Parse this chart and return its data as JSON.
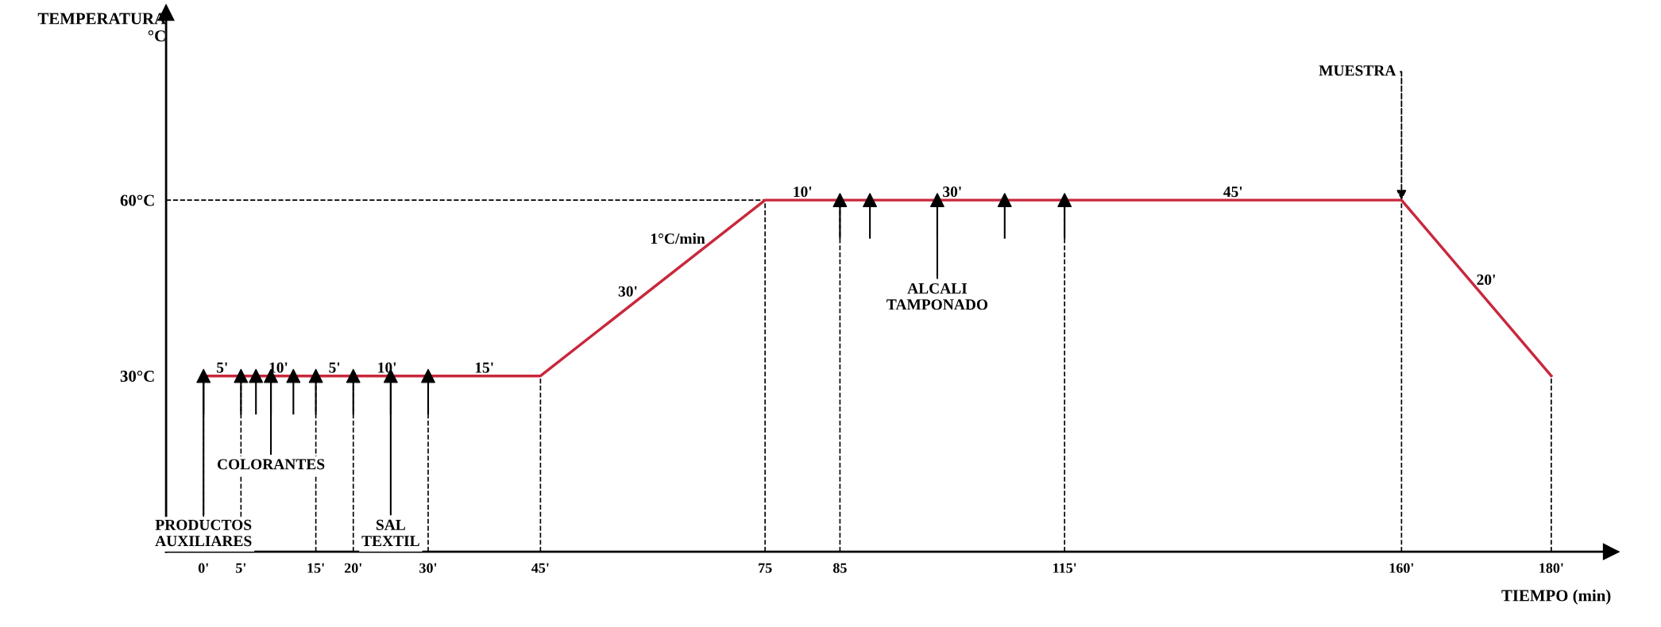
{
  "chart_data": {
    "type": "line",
    "xlabel": "TIEMPO (min)",
    "ylabel": "TEMPERATURA\n°C",
    "xlim": [
      -5,
      188
    ],
    "ylim": [
      0,
      92
    ],
    "xticks": [
      {
        "value": 0,
        "label": "0'"
      },
      {
        "value": 5,
        "label": "5'"
      },
      {
        "value": 15,
        "label": "15'"
      },
      {
        "value": 20,
        "label": "20'"
      },
      {
        "value": 30,
        "label": "30'"
      },
      {
        "value": 45,
        "label": "45'"
      },
      75,
      85,
      {
        "value": 115,
        "label": "115'"
      },
      {
        "value": 160,
        "label": "160'"
      },
      {
        "value": 180,
        "label": "180'"
      }
    ],
    "yticks": [
      {
        "value": 30,
        "label": "30°C"
      },
      {
        "value": 60,
        "label": "60°C"
      }
    ],
    "grid": false,
    "legend": false,
    "series": [
      {
        "color": "#c8283c",
        "x": [
          0,
          45,
          75,
          160,
          180
        ],
        "values": [
          30,
          30,
          60,
          60,
          30
        ]
      },
      {
        "type": "scatter",
        "marker": "triangle",
        "color": "#000000",
        "x": [
          0,
          5,
          7,
          9,
          12,
          15,
          20,
          25,
          30,
          85,
          89,
          98,
          107,
          115
        ],
        "values": [
          30,
          30,
          30,
          30,
          30,
          30,
          30,
          30,
          30,
          60,
          60,
          60,
          60,
          60
        ]
      }
    ],
    "ref_lines": [
      {
        "axis": "x",
        "value": 0,
        "color": "#000000",
        "line_style": "dashed"
      },
      {
        "axis": "x",
        "value": 5,
        "color": "#000000",
        "line_style": "dashed"
      },
      {
        "axis": "x",
        "value": 15,
        "color": "#000000",
        "line_style": "dashed"
      },
      {
        "axis": "x",
        "value": 20,
        "color": "#000000",
        "line_style": "dashed"
      },
      {
        "axis": "x",
        "value": 30,
        "color": "#000000",
        "line_style": "dashed"
      },
      {
        "axis": "x",
        "value": 45,
        "color": "#000000",
        "line_style": "dashed"
      },
      {
        "axis": "x",
        "value": 75,
        "color": "#000000",
        "line_style": "dashed"
      },
      {
        "axis": "x",
        "value": 85,
        "color": "#000000",
        "line_style": "dashed"
      },
      {
        "axis": "x",
        "value": 115,
        "color": "#000000",
        "line_style": "dashed"
      },
      {
        "axis": "x",
        "value": 160,
        "color": "#000000",
        "line_style": "dashed"
      },
      {
        "axis": "x",
        "value": 180,
        "color": "#000000",
        "line_style": "dashed"
      },
      {
        "axis": "y",
        "value": 60,
        "color": "#000000",
        "line_style": "dashed"
      }
    ],
    "annotations": [
      {
        "text": "5'",
        "x": 2.5,
        "y": 30
      },
      {
        "text": "10'",
        "x": 10,
        "y": 30
      },
      {
        "text": "5'",
        "x": 17.5,
        "y": 30
      },
      {
        "text": "10'",
        "x": 24.5,
        "y": 30
      },
      {
        "text": "15'",
        "x": 37.5,
        "y": 30
      },
      {
        "text": "30'",
        "x": 58,
        "y": 43
      },
      {
        "text": "1°C/min",
        "x": 67,
        "y": 52
      },
      {
        "text": "10'",
        "x": 80,
        "y": 60
      },
      {
        "text": "30'",
        "x": 100,
        "y": 60
      },
      {
        "text": "45'",
        "x": 137.5,
        "y": 60
      },
      {
        "text": "20'",
        "x": 170,
        "y": 45
      },
      {
        "text": "MUESTRA",
        "x": 160,
        "y": 60
      },
      {
        "text": "PRODUCTOS\nAUXILIARES",
        "x": 0,
        "y": 30
      },
      {
        "text": "COLORANTES",
        "x": 9,
        "y": 30
      },
      {
        "text": "SAL\nTEXTIL",
        "x": 25,
        "y": 30
      },
      {
        "text": "ALCALI\nTAMPONADO",
        "x": 98,
        "y": 60
      }
    ]
  }
}
